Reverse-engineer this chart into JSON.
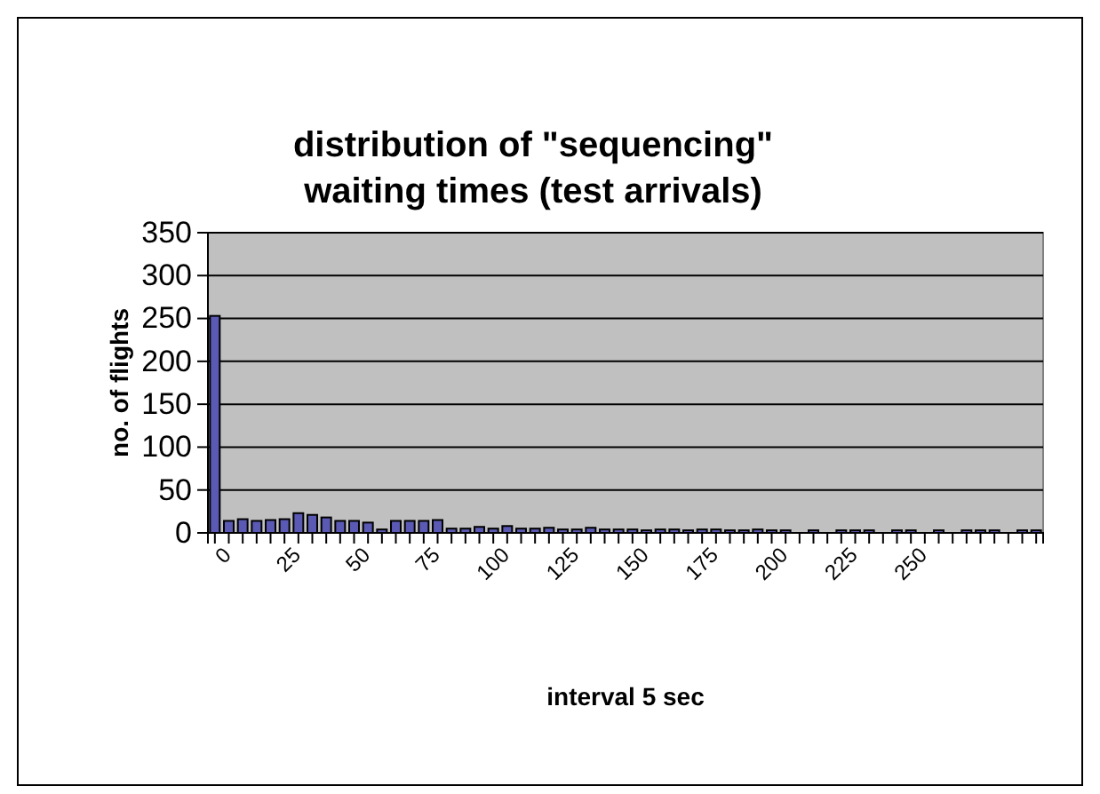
{
  "chart_data": {
    "type": "bar",
    "title": "distribution of \"sequencing\" waiting times (test arrivals)",
    "xlabel": "interval 5 sec",
    "ylabel": "no. of flights",
    "categories": [
      "0",
      null,
      null,
      null,
      null,
      "25",
      null,
      null,
      null,
      null,
      "50",
      null,
      null,
      null,
      null,
      "75",
      null,
      null,
      null,
      null,
      "100",
      null,
      null,
      null,
      null,
      "125",
      null,
      null,
      null,
      null,
      "150",
      null,
      null,
      null,
      null,
      "175",
      null,
      null,
      null,
      null,
      "200",
      null,
      null,
      null,
      null,
      "225",
      null,
      null,
      null,
      null,
      "250",
      null,
      null,
      null,
      null,
      null,
      null,
      null,
      null,
      null
    ],
    "values": [
      253,
      14,
      16,
      14,
      15,
      16,
      23,
      21,
      18,
      14,
      14,
      12,
      4,
      14,
      14,
      14,
      15,
      5,
      5,
      7,
      5,
      8,
      5,
      5,
      6,
      4,
      4,
      6,
      4,
      4,
      4,
      3,
      4,
      4,
      3,
      4,
      4,
      3,
      3,
      4,
      3,
      3,
      0,
      3,
      0,
      3,
      3,
      3,
      0,
      3,
      3,
      0,
      3,
      0,
      3,
      3,
      3,
      0,
      3,
      3
    ],
    "color": "#5a5ab4",
    "ylim": [
      0,
      350
    ],
    "yticks": [
      0,
      50,
      100,
      150,
      200,
      250,
      300,
      350
    ],
    "grid": "y"
  }
}
